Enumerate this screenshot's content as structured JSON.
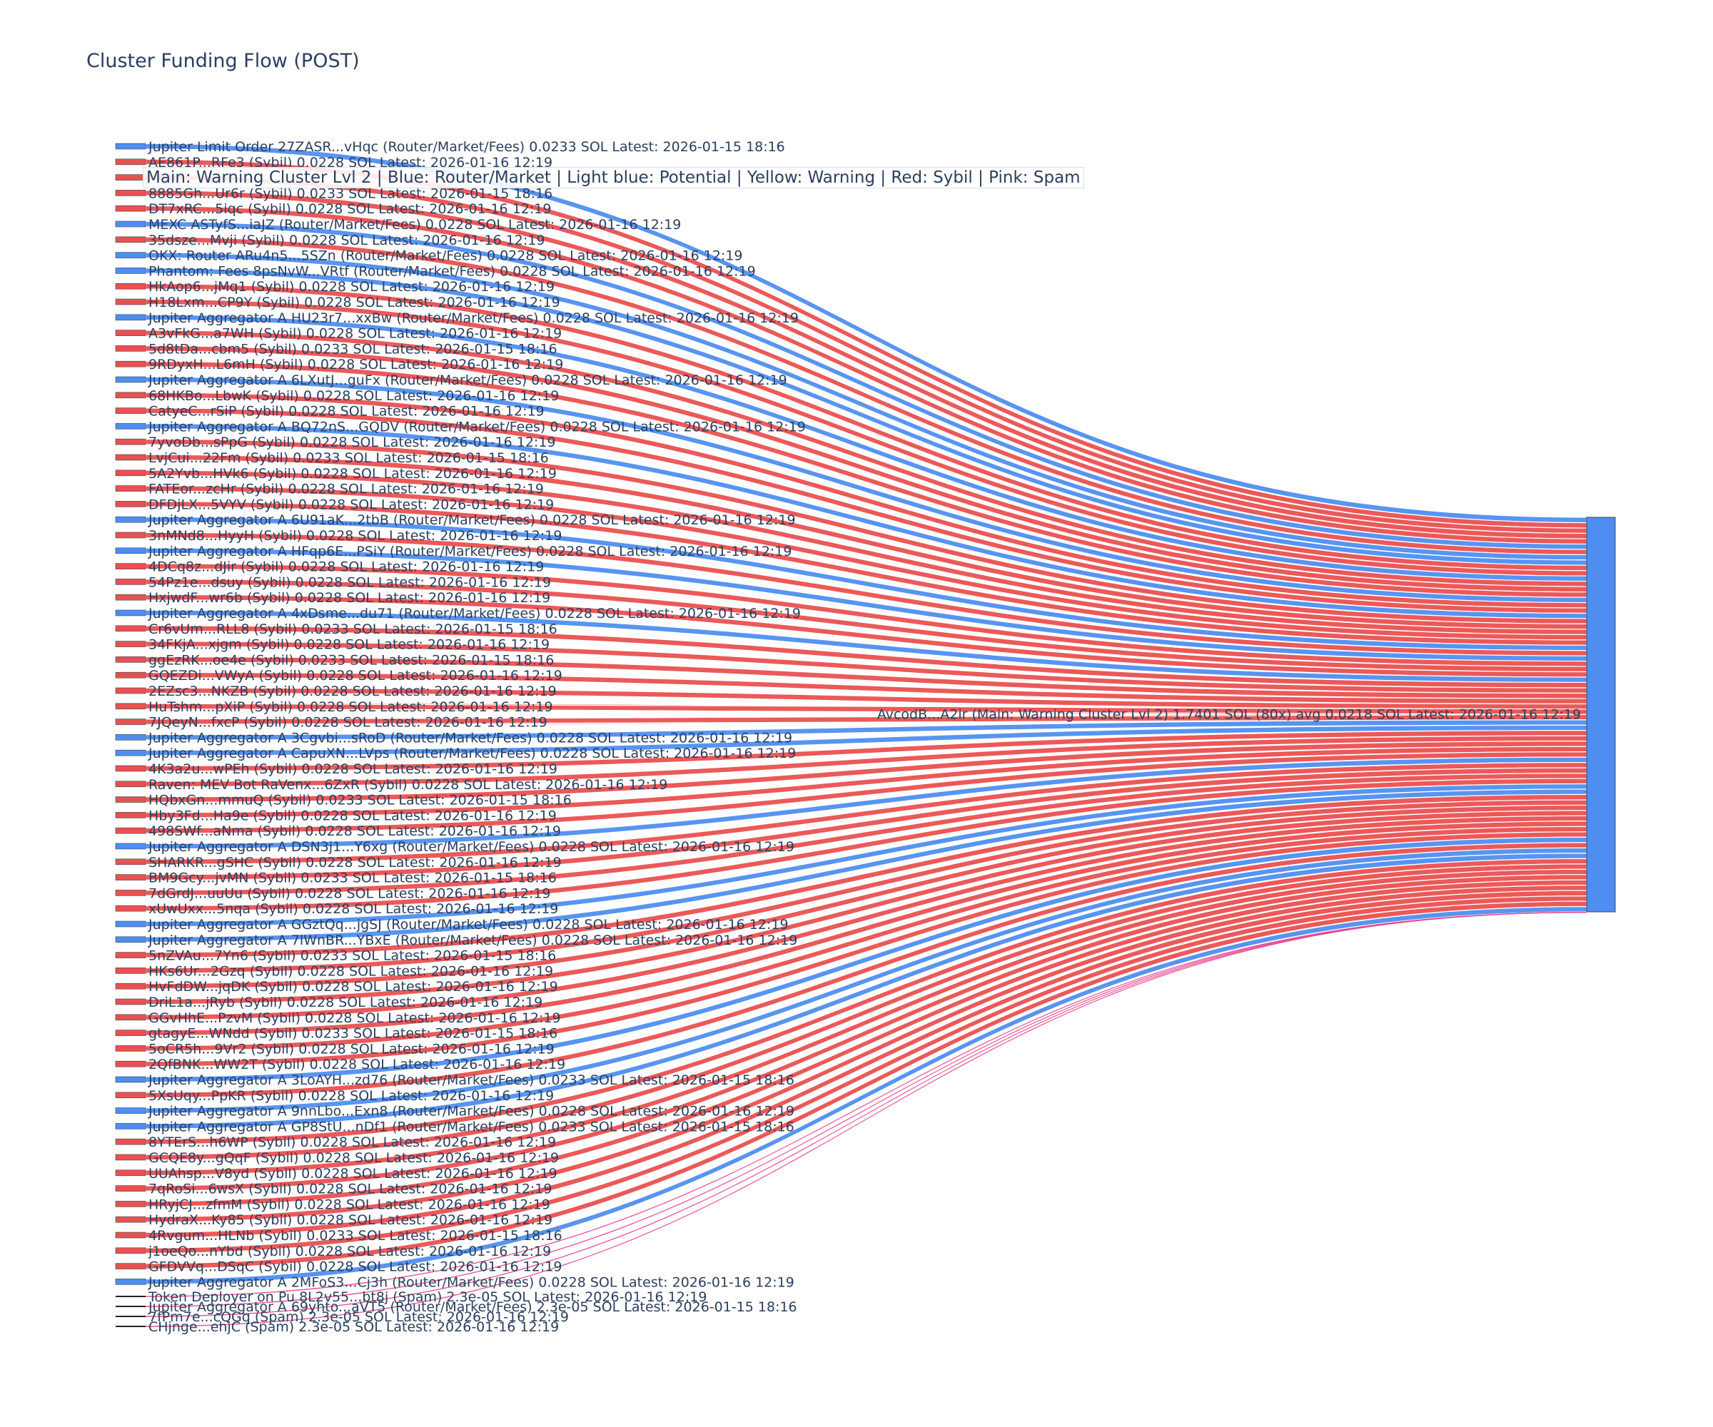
{
  "title": "Cluster Funding Flow (POST)",
  "annotation": "Main: Warning Cluster Lvl 2  |  Blue: Router/Market | Light blue: Potential | Yellow: Warning | Red: Sybil | Pink: Spam",
  "colors": {
    "router": "#4f8ef0",
    "sybil": "#ea5050",
    "spam": "#e83e8c",
    "main_node": "#4f8ef0",
    "spam_node": "#222222",
    "text": "#2a3f5f"
  },
  "chart_data": {
    "type": "sankey",
    "title": "Cluster Funding Flow (POST)",
    "target": {
      "label": "AvcodB...A2ir (Main: Warning Cluster Lvl 2) 1.7401 SOL (80x) avg 0.0218 SOL Latest: 2026-01-16 12:19",
      "category": "main"
    },
    "sources": [
      {
        "label": "Jupiter Limit Order  27ZASR...vHqc (Router/Market/Fees) 0.0233 SOL Latest: 2026-01-15 18:16",
        "category": "router",
        "value": 0.0233
      },
      {
        "label": "AE861P...RFe3 (Sybil) 0.0228 SOL Latest: 2026-01-16 12:19",
        "category": "sybil",
        "value": 0.0228
      },
      {
        "label": "",
        "category": "sybil",
        "value": 0.0228
      },
      {
        "label": "8885Gh...Ur6r (Sybil) 0.0233 SOL Latest: 2026-01-15 18:16",
        "category": "sybil",
        "value": 0.0233
      },
      {
        "label": "DT7xRC...5iqc (Sybil) 0.0228 SOL Latest: 2026-01-16 12:19",
        "category": "sybil",
        "value": 0.0228
      },
      {
        "label": "MEXC ASTyfS...iaJZ (Router/Market/Fees) 0.0228 SOL Latest: 2026-01-16 12:19",
        "category": "router",
        "value": 0.0228
      },
      {
        "label": "35dsze...Mvji (Sybil) 0.0228 SOL Latest: 2026-01-16 12:19",
        "category": "sybil",
        "value": 0.0228
      },
      {
        "label": "OKX: Router ARu4n5...5SZn (Router/Market/Fees) 0.0228 SOL Latest: 2026-01-16 12:19",
        "category": "router",
        "value": 0.0228
      },
      {
        "label": "Phantom: Fees 8psNvW...VRtf (Router/Market/Fees) 0.0228 SOL Latest: 2026-01-16 12:19",
        "category": "router",
        "value": 0.0228
      },
      {
        "label": "HkAop6...jMq1 (Sybil) 0.0228 SOL Latest: 2026-01-16 12:19",
        "category": "sybil",
        "value": 0.0228
      },
      {
        "label": "H18Lxm...CP9Y (Sybil) 0.0228 SOL Latest: 2026-01-16 12:19",
        "category": "sybil",
        "value": 0.0228
      },
      {
        "label": "Jupiter Aggregator A HU23r7...xxBw (Router/Market/Fees) 0.0228 SOL Latest: 2026-01-16 12:19",
        "category": "router",
        "value": 0.0228
      },
      {
        "label": "A3vFkG...a7WH (Sybil) 0.0228 SOL Latest: 2026-01-16 12:19",
        "category": "sybil",
        "value": 0.0228
      },
      {
        "label": "5d8tDa...cbm5 (Sybil) 0.0233 SOL Latest: 2026-01-15 18:16",
        "category": "sybil",
        "value": 0.0233
      },
      {
        "label": "9RDyxH...L6mH (Sybil) 0.0228 SOL Latest: 2026-01-16 12:19",
        "category": "sybil",
        "value": 0.0228
      },
      {
        "label": "Jupiter Aggregator A 6LXutJ...guFx (Router/Market/Fees) 0.0228 SOL Latest: 2026-01-16 12:19",
        "category": "router",
        "value": 0.0228
      },
      {
        "label": "68HKBo...LbwK (Sybil) 0.0228 SOL Latest: 2026-01-16 12:19",
        "category": "sybil",
        "value": 0.0228
      },
      {
        "label": "CatyeC...rSiP (Sybil) 0.0228 SOL Latest: 2026-01-16 12:19",
        "category": "sybil",
        "value": 0.0228
      },
      {
        "label": "Jupiter Aggregator A BQ72nS...GQDV (Router/Market/Fees) 0.0228 SOL Latest: 2026-01-16 12:19",
        "category": "router",
        "value": 0.0228
      },
      {
        "label": "7yvoDb...sPpG (Sybil) 0.0228 SOL Latest: 2026-01-16 12:19",
        "category": "sybil",
        "value": 0.0228
      },
      {
        "label": "LvjCui...22Fm (Sybil) 0.0233 SOL Latest: 2026-01-15 18:16",
        "category": "sybil",
        "value": 0.0233
      },
      {
        "label": "5A2Yvb...HVk6 (Sybil) 0.0228 SOL Latest: 2026-01-16 12:19",
        "category": "sybil",
        "value": 0.0228
      },
      {
        "label": "FATEor...zcHr (Sybil) 0.0228 SOL Latest: 2026-01-16 12:19",
        "category": "sybil",
        "value": 0.0228
      },
      {
        "label": "DFDjLX...5VYV (Sybil) 0.0228 SOL Latest: 2026-01-16 12:19",
        "category": "sybil",
        "value": 0.0228
      },
      {
        "label": "Jupiter Aggregator A 6U91aK...2tbB (Router/Market/Fees) 0.0228 SOL Latest: 2026-01-16 12:19",
        "category": "router",
        "value": 0.0228
      },
      {
        "label": "3nMNd8...HyyH (Sybil) 0.0228 SOL Latest: 2026-01-16 12:19",
        "category": "sybil",
        "value": 0.0228
      },
      {
        "label": "Jupiter Aggregator A HFqp6E...PSiY (Router/Market/Fees) 0.0228 SOL Latest: 2026-01-16 12:19",
        "category": "router",
        "value": 0.0228
      },
      {
        "label": "4DCq8z...dJir (Sybil) 0.0228 SOL Latest: 2026-01-16 12:19",
        "category": "sybil",
        "value": 0.0228
      },
      {
        "label": "54Pz1e...dsuy (Sybil) 0.0228 SOL Latest: 2026-01-16 12:19",
        "category": "sybil",
        "value": 0.0228
      },
      {
        "label": "HxjwdF...wr6b (Sybil) 0.0228 SOL Latest: 2026-01-16 12:19",
        "category": "sybil",
        "value": 0.0228
      },
      {
        "label": "Jupiter Aggregator A 4xDsme...du71 (Router/Market/Fees) 0.0228 SOL Latest: 2026-01-16 12:19",
        "category": "router",
        "value": 0.0228
      },
      {
        "label": "Cr6vUm...RLL8 (Sybil) 0.0233 SOL Latest: 2026-01-15 18:16",
        "category": "sybil",
        "value": 0.0233
      },
      {
        "label": "34FKjA...xjgm (Sybil) 0.0228 SOL Latest: 2026-01-16 12:19",
        "category": "sybil",
        "value": 0.0228
      },
      {
        "label": "ggEzRK...oe4e (Sybil) 0.0233 SOL Latest: 2026-01-15 18:16",
        "category": "sybil",
        "value": 0.0233
      },
      {
        "label": "GQEZDi...VWyA (Sybil) 0.0228 SOL Latest: 2026-01-16 12:19",
        "category": "sybil",
        "value": 0.0228
      },
      {
        "label": "2EZsc3...NKZB (Sybil) 0.0228 SOL Latest: 2026-01-16 12:19",
        "category": "sybil",
        "value": 0.0228
      },
      {
        "label": "HuTshm...pXiP (Sybil) 0.0228 SOL Latest: 2026-01-16 12:19",
        "category": "sybil",
        "value": 0.0228
      },
      {
        "label": "7JQeyN...fxcP (Sybil) 0.0228 SOL Latest: 2026-01-16 12:19",
        "category": "sybil",
        "value": 0.0228
      },
      {
        "label": "Jupiter Aggregator A 3Cgvbi...sRoD (Router/Market/Fees) 0.0228 SOL Latest: 2026-01-16 12:19",
        "category": "router",
        "value": 0.0228
      },
      {
        "label": "Jupiter Aggregator A CapuXN...LVps (Router/Market/Fees) 0.0228 SOL Latest: 2026-01-16 12:19",
        "category": "router",
        "value": 0.0228
      },
      {
        "label": "4K3a2u...wPEh (Sybil) 0.0228 SOL Latest: 2026-01-16 12:19",
        "category": "sybil",
        "value": 0.0228
      },
      {
        "label": "Raven: MEV Bot RaVenx...6ZxR (Sybil) 0.0228 SOL Latest: 2026-01-16 12:19",
        "category": "sybil",
        "value": 0.0228
      },
      {
        "label": "HQbxGn...mmuQ (Sybil) 0.0233 SOL Latest: 2026-01-15 18:16",
        "category": "sybil",
        "value": 0.0233
      },
      {
        "label": "Hby3Fd...Ha9e (Sybil) 0.0228 SOL Latest: 2026-01-16 12:19",
        "category": "sybil",
        "value": 0.0228
      },
      {
        "label": "498SWf...aNma (Sybil) 0.0228 SOL Latest: 2026-01-16 12:19",
        "category": "sybil",
        "value": 0.0228
      },
      {
        "label": "Jupiter Aggregator A DSN3j1...Y6xg (Router/Market/Fees) 0.0228 SOL Latest: 2026-01-16 12:19",
        "category": "router",
        "value": 0.0228
      },
      {
        "label": "SHARKR...gSHC (Sybil) 0.0228 SOL Latest: 2026-01-16 12:19",
        "category": "sybil",
        "value": 0.0228
      },
      {
        "label": "BM9Gcy...jvMN (Sybil) 0.0233 SOL Latest: 2026-01-15 18:16",
        "category": "sybil",
        "value": 0.0233
      },
      {
        "label": "7dGrdJ...uuUu (Sybil) 0.0228 SOL Latest: 2026-01-16 12:19",
        "category": "sybil",
        "value": 0.0228
      },
      {
        "label": "xUwUxx...5nqa (Sybil) 0.0228 SOL Latest: 2026-01-16 12:19",
        "category": "sybil",
        "value": 0.0228
      },
      {
        "label": "Jupiter Aggregator A GGztQq...jgSJ (Router/Market/Fees) 0.0228 SOL Latest: 2026-01-16 12:19",
        "category": "router",
        "value": 0.0228
      },
      {
        "label": "Jupiter Aggregator A 7lWnBR...YBxE (Router/Market/Fees) 0.0228 SOL Latest: 2026-01-16 12:19",
        "category": "router",
        "value": 0.0228
      },
      {
        "label": "5nZVAu...7Yn6 (Sybil) 0.0233 SOL Latest: 2026-01-15 18:16",
        "category": "sybil",
        "value": 0.0233
      },
      {
        "label": "HKs6Ur...2Gzq (Sybil) 0.0228 SOL Latest: 2026-01-16 12:19",
        "category": "sybil",
        "value": 0.0228
      },
      {
        "label": "HvFdDW...jqDK (Sybil) 0.0228 SOL Latest: 2026-01-16 12:19",
        "category": "sybil",
        "value": 0.0228
      },
      {
        "label": "DriL1a...jRyb (Sybil) 0.0228 SOL Latest: 2026-01-16 12:19",
        "category": "sybil",
        "value": 0.0228
      },
      {
        "label": "GGvHhE...PzvM (Sybil) 0.0228 SOL Latest: 2026-01-16 12:19",
        "category": "sybil",
        "value": 0.0228
      },
      {
        "label": "gtagyE...WNdd (Sybil) 0.0233 SOL Latest: 2026-01-15 18:16",
        "category": "sybil",
        "value": 0.0233
      },
      {
        "label": "5oCR5h...9Vr2 (Sybil) 0.0228 SOL Latest: 2026-01-16 12:19",
        "category": "sybil",
        "value": 0.0228
      },
      {
        "label": "2QfBNK...WW2T (Sybil) 0.0228 SOL Latest: 2026-01-16 12:19",
        "category": "sybil",
        "value": 0.0228
      },
      {
        "label": "Jupiter Aggregator A 3LoAYH...zd76 (Router/Market/Fees) 0.0233 SOL Latest: 2026-01-15 18:16",
        "category": "router",
        "value": 0.0233
      },
      {
        "label": "5XsUqy...PpKR (Sybil) 0.0228 SOL Latest: 2026-01-16 12:19",
        "category": "sybil",
        "value": 0.0228
      },
      {
        "label": "Jupiter Aggregator A 9nnLbo...Exn8 (Router/Market/Fees) 0.0228 SOL Latest: 2026-01-16 12:19",
        "category": "router",
        "value": 0.0228
      },
      {
        "label": "Jupiter Aggregator A GP8StU...nDf1 (Router/Market/Fees) 0.0233 SOL Latest: 2026-01-15 18:16",
        "category": "router",
        "value": 0.0233
      },
      {
        "label": "8YTErS...h6WP (Sybil) 0.0228 SOL Latest: 2026-01-16 12:19",
        "category": "sybil",
        "value": 0.0228
      },
      {
        "label": "GCQE8y...gQqF (Sybil) 0.0228 SOL Latest: 2026-01-16 12:19",
        "category": "sybil",
        "value": 0.0228
      },
      {
        "label": "UUAhsp...V8yd (Sybil) 0.0228 SOL Latest: 2026-01-16 12:19",
        "category": "sybil",
        "value": 0.0228
      },
      {
        "label": "7qRoSi...6wsX (Sybil) 0.0228 SOL Latest: 2026-01-16 12:19",
        "category": "sybil",
        "value": 0.0228
      },
      {
        "label": "HRyjCJ...zfmM (Sybil) 0.0228 SOL Latest: 2026-01-16 12:19",
        "category": "sybil",
        "value": 0.0228
      },
      {
        "label": "HydraX...Ky85 (Sybil) 0.0228 SOL Latest: 2026-01-16 12:19",
        "category": "sybil",
        "value": 0.0228
      },
      {
        "label": "4Rvgum...HLNb (Sybil) 0.0233 SOL Latest: 2026-01-15 18:16",
        "category": "sybil",
        "value": 0.0233
      },
      {
        "label": "j1oeQo...nYbd (Sybil) 0.0228 SOL Latest: 2026-01-16 12:19",
        "category": "sybil",
        "value": 0.0228
      },
      {
        "label": "GFDVVq...DSqC (Sybil) 0.0228 SOL Latest: 2026-01-16 12:19",
        "category": "sybil",
        "value": 0.0228
      },
      {
        "label": "Jupiter Aggregator A 2MFoS3...Cj3h (Router/Market/Fees) 0.0228 SOL Latest: 2026-01-16 12:19",
        "category": "router",
        "value": 0.0228
      },
      {
        "label": "Token Deployer on Pu 8L2v55...bt8j (Spam) 2.3e-05 SOL Latest: 2026-01-16 12:19",
        "category": "spam",
        "value": 2.3e-05
      },
      {
        "label": "Jupiter Aggregator A 69yhto...aVT5 (Router/Market/Fees) 2.3e-05 SOL Latest: 2026-01-15 18:16",
        "category": "spam",
        "value": 2.3e-05
      },
      {
        "label": "7fPm7e...cQGq (Spam) 2.3e-05 SOL Latest: 2026-01-16 12:19",
        "category": "spam",
        "value": 2.3e-05
      },
      {
        "label": "CHjnge...ehjC (Spam) 2.3e-05 SOL Latest: 2026-01-16 12:19",
        "category": "spam",
        "value": 2.3e-05
      }
    ]
  }
}
